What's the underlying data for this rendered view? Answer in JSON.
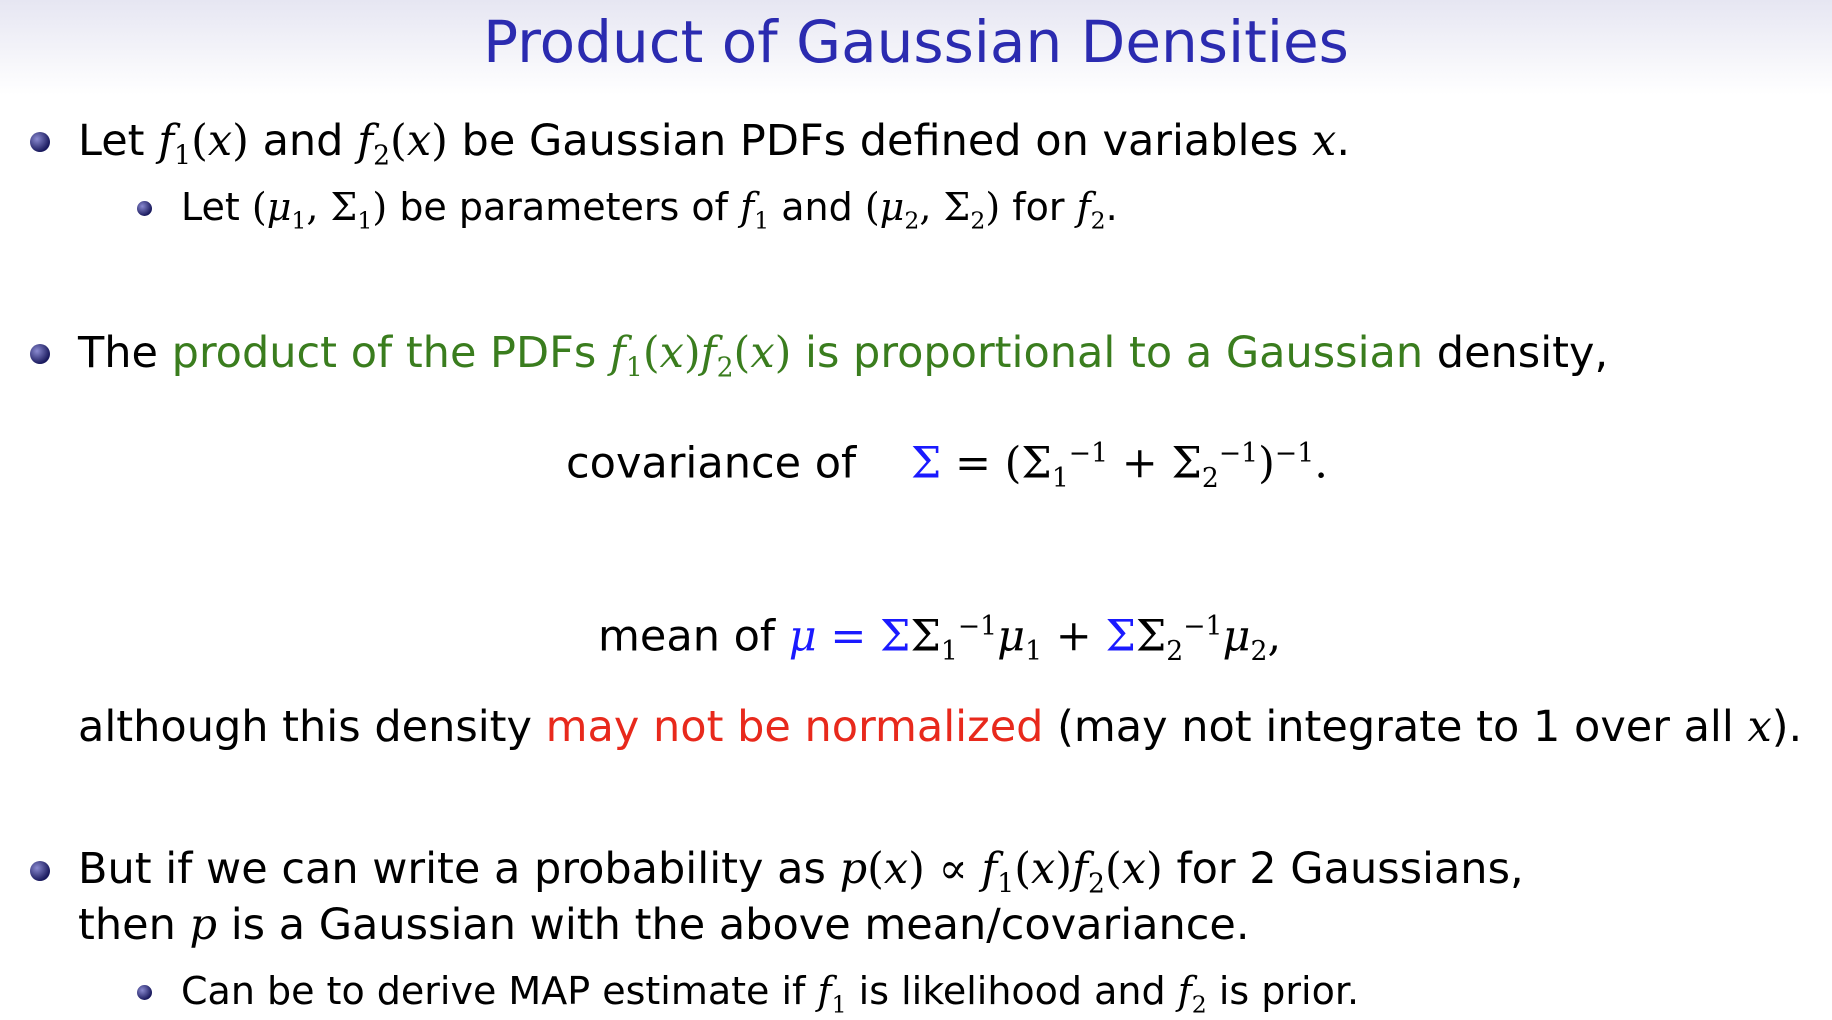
{
  "title": "Product of Gaussian Densities",
  "b1": {
    "t1": "Let ",
    "t2": " and ",
    "t3": " be Gaussian PDFs defined on variables ",
    "t4": "."
  },
  "b1s": {
    "t1": "Let ",
    "t2": " be parameters of ",
    "t3": " and ",
    "t4": " for ",
    "t5": "."
  },
  "b2": {
    "t1": "The ",
    "g1": "product of the PDFs ",
    "g2": " is proportional to a Gaussian",
    "t2": " density,"
  },
  "cov": {
    "label": "covariance of"
  },
  "mean": {
    "label": "mean of "
  },
  "norm": {
    "t1": "although this density ",
    "red": "may not be normalized",
    "t2": " (may not integrate to 1 over all ",
    "t3": ")."
  },
  "b3": {
    "t1": "But if we can write a probability as ",
    "t2": " for 2 Gaussians,",
    "t3": "then ",
    "t4": " is a Gaussian with the above mean/covariance."
  },
  "b3s": {
    "t1": "Can be to derive MAP estimate if ",
    "t2": " is likelihood and ",
    "t3": " is prior."
  },
  "colors": {
    "title": "#2b2bb0",
    "green": "#3a7d1e",
    "red": "#e8291c",
    "blue": "#1a1aff"
  }
}
